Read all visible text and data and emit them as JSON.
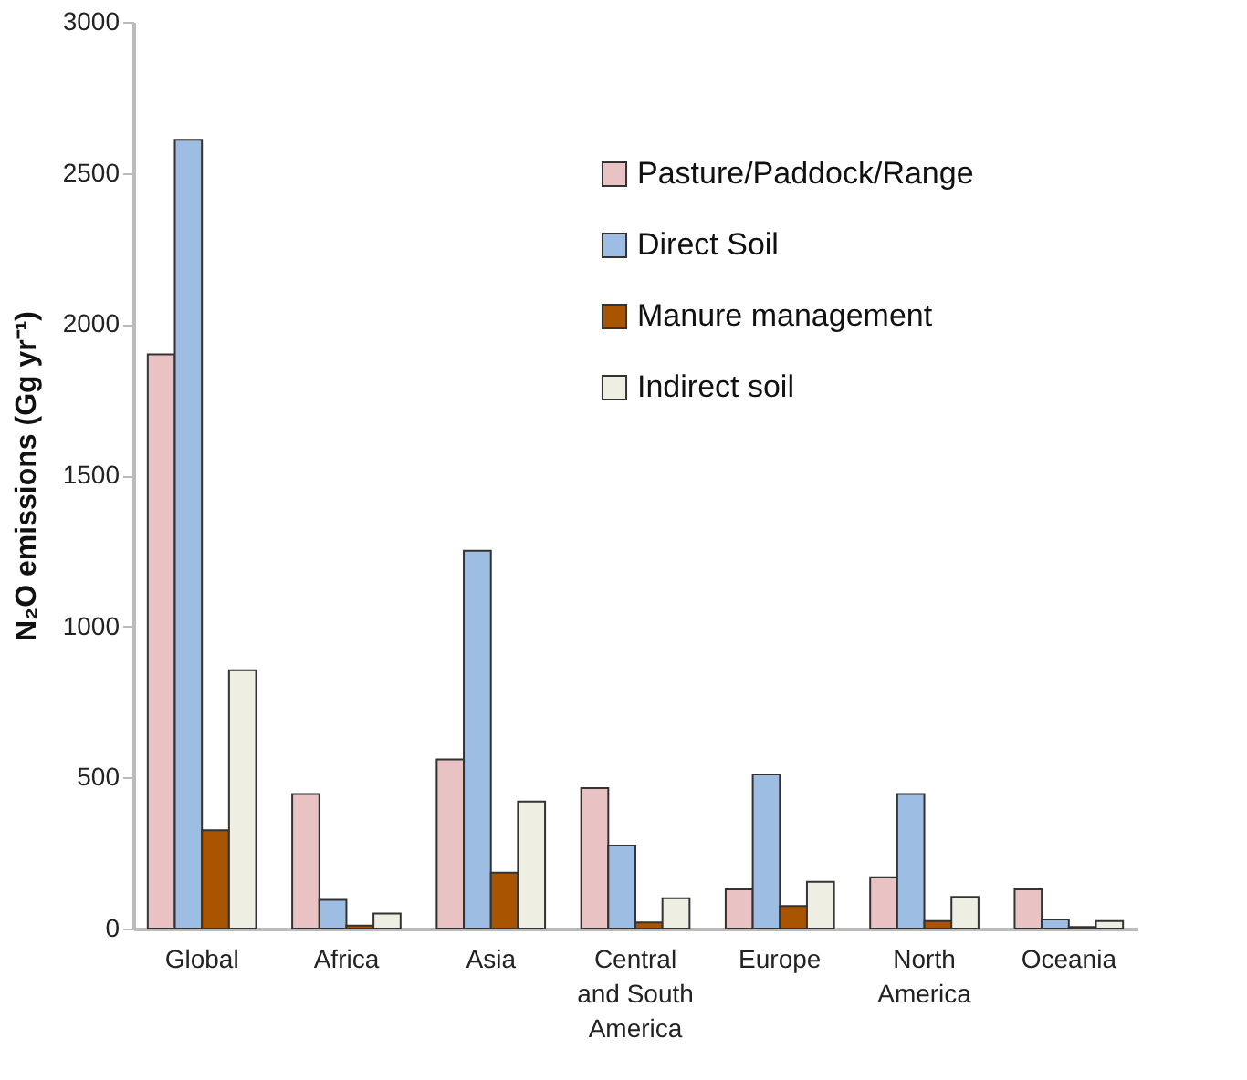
{
  "chart_data": {
    "type": "bar",
    "ylabel": "N₂O emissions (Gg yr⁻¹)",
    "categories": [
      "Global",
      "Africa",
      "Asia",
      "Central\nand South\nAmerica",
      "Europe",
      "North\nAmerica",
      "Oceania"
    ],
    "series": [
      {
        "name": "Pasture/Paddock/Range",
        "color": "#e9c3c3",
        "values": [
          1900,
          445,
          560,
          465,
          130,
          170,
          130
        ]
      },
      {
        "name": "Direct Soil",
        "color": "#9dbde3",
        "values": [
          2610,
          95,
          1250,
          275,
          510,
          445,
          30
        ]
      },
      {
        "name": "Manure management",
        "color": "#a85400",
        "values": [
          325,
          10,
          185,
          20,
          75,
          25,
          5
        ]
      },
      {
        "name": "Indirect soil",
        "color": "#eeeee2",
        "values": [
          855,
          50,
          420,
          100,
          155,
          105,
          25
        ]
      }
    ],
    "ylim": [
      0,
      3000
    ],
    "yticks": [
      0,
      500,
      1000,
      1500,
      2000,
      2500,
      3000
    ],
    "grid": false,
    "legend": "top right"
  }
}
